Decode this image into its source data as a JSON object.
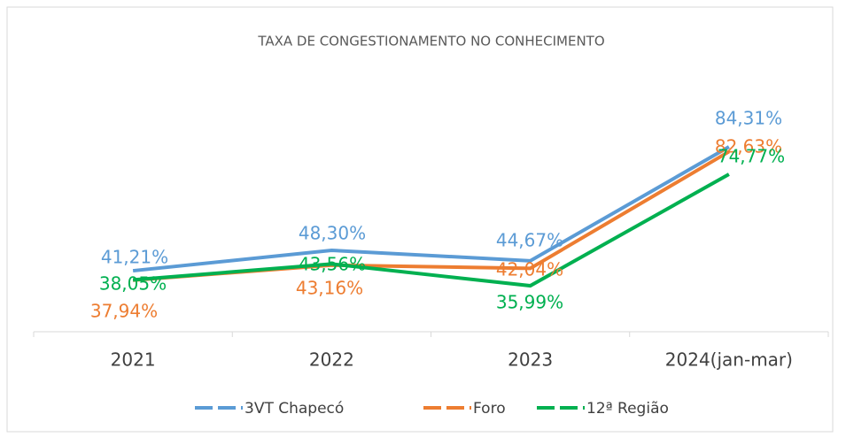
{
  "chart_data": {
    "type": "line",
    "title": "TAXA DE CONGESTIONAMENTO NO CONHECIMENTO",
    "categories": [
      "2021",
      "2022",
      "2023",
      "2024(jan-mar)"
    ],
    "ylim": [
      20,
      100
    ],
    "series": [
      {
        "name": "3VT Chapecó",
        "color": "#5b9bd5",
        "values": [
          41.21,
          48.3,
          44.67,
          84.31
        ],
        "value_labels": [
          "41,21%",
          "48,30%",
          "44,67%",
          "84,31%"
        ]
      },
      {
        "name": "Foro",
        "color": "#ed7d31",
        "values": [
          37.94,
          43.16,
          42.04,
          82.63
        ],
        "value_labels": [
          "37,94%",
          "43,16%",
          "42,04%",
          "82,63%"
        ]
      },
      {
        "name": "12ª Região",
        "color": "#00b050",
        "values": [
          38.05,
          43.56,
          35.99,
          74.77
        ],
        "value_labels": [
          "38,05%",
          "43,56%",
          "35,99%",
          "74,77%"
        ]
      }
    ],
    "legend": "bottom"
  }
}
